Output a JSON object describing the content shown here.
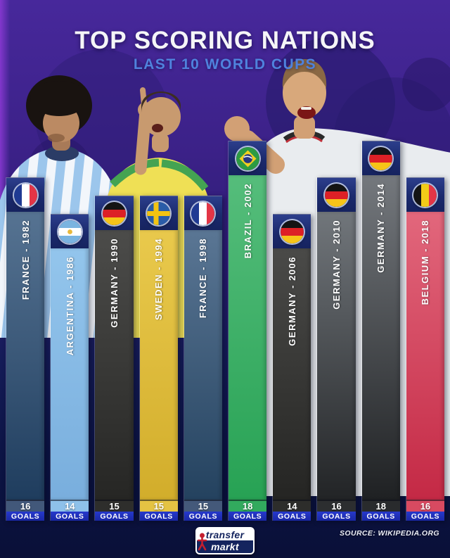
{
  "chart_data": {
    "type": "bar",
    "title": "TOP SCORING NATIONS",
    "subtitle": "LAST 10 WORLD CUPS",
    "categories": [
      "FRANCE - 1982",
      "ARGENTINA - 1986",
      "GERMANY - 1990",
      "SWEDEN - 1994",
      "FRANCE - 1998",
      "BRAZIL - 2002",
      "GERMANY - 2006",
      "GERMANY - 2010",
      "GERMANY - 2014",
      "BELGIUM - 2018"
    ],
    "values": [
      16,
      14,
      15,
      15,
      15,
      18,
      14,
      16,
      18,
      16
    ],
    "unit_label": "GOALS",
    "legend": "none",
    "source": "SOURCE: WIKIPEDIA.ORG"
  },
  "header": {
    "title": "TOP SCORING NATIONS",
    "subtitle": "LAST 10 WORLD CUPS"
  },
  "goals_word": "GOALS",
  "bars": [
    {
      "nation": "FRANCE",
      "year": "1982",
      "label": "FRANCE - 1982",
      "goals": 16,
      "flag": "france",
      "colors": {
        "top": "#567392",
        "bottom": "#1f3d5e",
        "num": "#42587a"
      }
    },
    {
      "nation": "ARGENTINA",
      "year": "1986",
      "label": "ARGENTINA - 1986",
      "goals": 14,
      "flag": "argentina",
      "colors": {
        "top": "#93c5ec",
        "bottom": "#79aedd",
        "num": "#8ec1ea"
      }
    },
    {
      "nation": "GERMANY",
      "year": "1990",
      "label": "GERMANY - 1990",
      "goals": 15,
      "flag": "germany",
      "colors": {
        "top": "#4c4c4a",
        "bottom": "#262624",
        "num": "#2e2e2c"
      }
    },
    {
      "nation": "SWEDEN",
      "year": "1994",
      "label": "SWEDEN - 1994",
      "goals": 15,
      "flag": "sweden",
      "colors": {
        "top": "#e9c94c",
        "bottom": "#d2ad2b",
        "num": "#e4c343"
      }
    },
    {
      "nation": "FRANCE",
      "year": "1998",
      "label": "FRANCE - 1998",
      "goals": 15,
      "flag": "france",
      "colors": {
        "top": "#5a7694",
        "bottom": "#24425f",
        "num": "#44597a"
      }
    },
    {
      "nation": "BRAZIL",
      "year": "2002",
      "label": "BRAZIL - 2002",
      "goals": 18,
      "flag": "brazil",
      "colors": {
        "top": "#55bd7b",
        "bottom": "#27a254",
        "num": "#32aa5e"
      }
    },
    {
      "nation": "GERMANY",
      "year": "2006",
      "label": "GERMANY - 2006",
      "goals": 14,
      "flag": "germany",
      "colors": {
        "top": "#4a4a48",
        "bottom": "#252523",
        "num": "#2d2d2b"
      }
    },
    {
      "nation": "GERMANY",
      "year": "2010",
      "label": "GERMANY - 2010",
      "goals": 16,
      "flag": "germany",
      "colors": {
        "top": "#71767b",
        "bottom": "#222426",
        "num": "#2c2e30"
      }
    },
    {
      "nation": "GERMANY",
      "year": "2014",
      "label": "GERMANY - 2014",
      "goals": 18,
      "flag": "germany",
      "colors": {
        "top": "#74787d",
        "bottom": "#1f2123",
        "num": "#292b2d"
      }
    },
    {
      "nation": "BELGIUM",
      "year": "2018",
      "label": "BELGIUM - 2018",
      "goals": 16,
      "flag": "belgium",
      "colors": {
        "top": "#e2677c",
        "bottom": "#c42945",
        "num": "#d84a61"
      }
    }
  ],
  "footer": {
    "logo_top": "transfer",
    "logo_bottom": "markt",
    "source": "SOURCE: WIKIPEDIA.ORG"
  },
  "accent_colors": {
    "goals_strip_blue": "#1f2db4",
    "header_navy": "#1b2a6d",
    "subtitle_blue": "#4f82dd",
    "background_purple": "#3b2187",
    "background_navy": "#0a1038"
  }
}
